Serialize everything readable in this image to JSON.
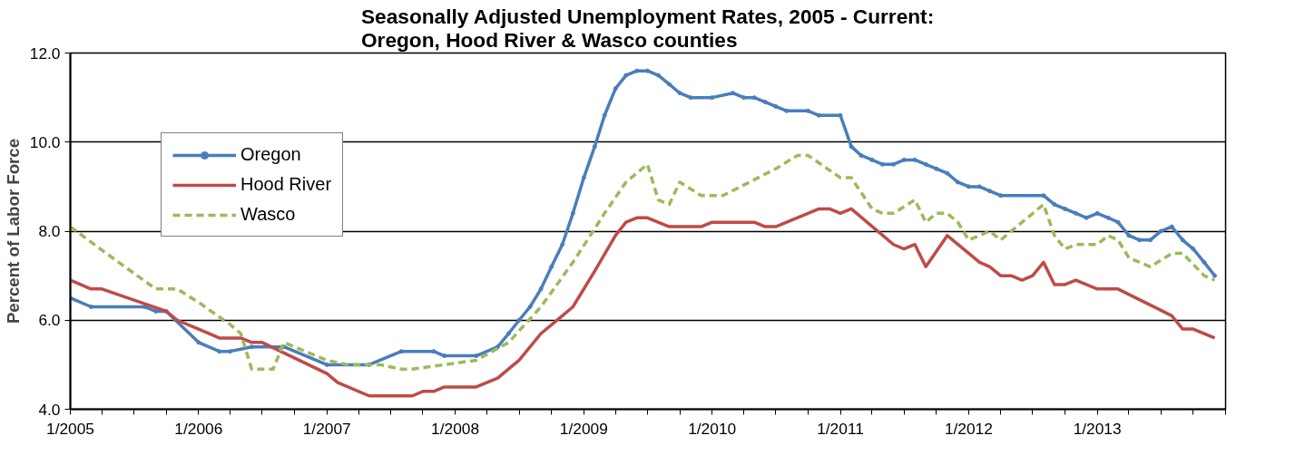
{
  "chart_data": {
    "type": "line",
    "title": "Seasonally Adjusted Unemployment Rates, 2005 - Current:\nOregon, Hood River & Wasco counties",
    "ylabel": "Percent of Labor Force",
    "ylim": [
      4.0,
      12.0
    ],
    "yticks": [
      {
        "value": 4,
        "label": "4.0"
      },
      {
        "value": 6,
        "label": "6.0"
      },
      {
        "value": 8,
        "label": "8.0"
      },
      {
        "value": 10,
        "label": "10.0"
      },
      {
        "value": 12,
        "label": "12.0"
      }
    ],
    "xlim": [
      "2005-01",
      "2014-01"
    ],
    "xticks": [
      {
        "value": "2005-01",
        "label": "1/2005"
      },
      {
        "value": "2005-04",
        "label": null
      },
      {
        "value": "2005-07",
        "label": null
      },
      {
        "value": "2005-10",
        "label": null
      },
      {
        "value": "2006-01",
        "label": "1/2006"
      },
      {
        "value": "2006-04",
        "label": null
      },
      {
        "value": "2006-07",
        "label": null
      },
      {
        "value": "2006-10",
        "label": null
      },
      {
        "value": "2007-01",
        "label": "1/2007"
      },
      {
        "value": "2007-04",
        "label": null
      },
      {
        "value": "2007-07",
        "label": null
      },
      {
        "value": "2007-10",
        "label": null
      },
      {
        "value": "2008-01",
        "label": "1/2008"
      },
      {
        "value": "2008-04",
        "label": null
      },
      {
        "value": "2008-07",
        "label": null
      },
      {
        "value": "2008-10",
        "label": null
      },
      {
        "value": "2009-01",
        "label": "1/2009"
      },
      {
        "value": "2009-04",
        "label": null
      },
      {
        "value": "2009-07",
        "label": null
      },
      {
        "value": "2009-10",
        "label": null
      },
      {
        "value": "2010-01",
        "label": "1/2010"
      },
      {
        "value": "2010-04",
        "label": null
      },
      {
        "value": "2010-07",
        "label": null
      },
      {
        "value": "2010-10",
        "label": null
      },
      {
        "value": "2011-01",
        "label": "1/2011"
      },
      {
        "value": "2011-04",
        "label": null
      },
      {
        "value": "2011-07",
        "label": null
      },
      {
        "value": "2011-10",
        "label": null
      },
      {
        "value": "2012-01",
        "label": "1/2012"
      },
      {
        "value": "2012-04",
        "label": null
      },
      {
        "value": "2012-07",
        "label": null
      },
      {
        "value": "2012-10",
        "label": null
      },
      {
        "value": "2013-01",
        "label": "1/2013"
      },
      {
        "value": "2013-04",
        "label": null
      },
      {
        "value": "2013-07",
        "label": null
      },
      {
        "value": "2013-10",
        "label": null
      },
      {
        "value": "2014-01",
        "label": null
      }
    ],
    "grid": "y",
    "legend": "top left",
    "series": [
      {
        "name": "Oregon",
        "color": "#4a7ebb",
        "marker": "circle",
        "line_style": "solid",
        "x": [
          "2005-01",
          "2005-03",
          "2005-08",
          "2005-09",
          "2005-10",
          "2006-01",
          "2006-03",
          "2006-04",
          "2006-06",
          "2006-09",
          "2007-01",
          "2007-05",
          "2007-08",
          "2007-11",
          "2007-12",
          "2008-03",
          "2008-05",
          "2008-06",
          "2008-07",
          "2008-08",
          "2008-09",
          "2008-10",
          "2008-11",
          "2008-12",
          "2009-01",
          "2009-02",
          "2009-03",
          "2009-04",
          "2009-05",
          "2009-06",
          "2009-07",
          "2009-08",
          "2009-09",
          "2009-10",
          "2009-11",
          "2010-01",
          "2010-03",
          "2010-04",
          "2010-05",
          "2010-06",
          "2010-07",
          "2010-08",
          "2010-10",
          "2010-11",
          "2011-01",
          "2011-02",
          "2011-03",
          "2011-04",
          "2011-05",
          "2011-06",
          "2011-07",
          "2011-08",
          "2011-09",
          "2011-10",
          "2011-11",
          "2011-12",
          "2012-01",
          "2012-02",
          "2012-03",
          "2012-04",
          "2012-08",
          "2012-09",
          "2012-10",
          "2012-11",
          "2012-12",
          "2013-01",
          "2013-02",
          "2013-03",
          "2013-04",
          "2013-05",
          "2013-06",
          "2013-07",
          "2013-08",
          "2013-09",
          "2013-10",
          "2013-11",
          "2013-12"
        ],
        "values": [
          6.5,
          6.3,
          6.3,
          6.2,
          6.2,
          5.5,
          5.3,
          5.3,
          5.4,
          5.4,
          5.0,
          5.0,
          5.3,
          5.3,
          5.2,
          5.2,
          5.4,
          5.7,
          6.0,
          6.3,
          6.7,
          7.2,
          7.7,
          8.4,
          9.2,
          9.9,
          10.6,
          11.2,
          11.5,
          11.6,
          11.6,
          11.5,
          11.3,
          11.1,
          11.0,
          11.0,
          11.1,
          11.0,
          11.0,
          10.9,
          10.8,
          10.7,
          10.7,
          10.6,
          10.6,
          9.9,
          9.7,
          9.6,
          9.5,
          9.5,
          9.6,
          9.6,
          9.5,
          9.4,
          9.3,
          9.1,
          9.0,
          9.0,
          8.9,
          8.8,
          8.8,
          8.6,
          8.5,
          8.4,
          8.3,
          8.4,
          8.3,
          8.2,
          7.9,
          7.8,
          7.8,
          8.0,
          8.1,
          7.8,
          7.6,
          7.3,
          7.0
        ]
      },
      {
        "name": "Hood River",
        "color": "#be4b48",
        "marker": "none",
        "line_style": "solid",
        "x": [
          "2005-01",
          "2005-03",
          "2005-04",
          "2005-10",
          "2005-11",
          "2006-01",
          "2006-03",
          "2006-05",
          "2006-06",
          "2006-07",
          "2007-01",
          "2007-02",
          "2007-05",
          "2007-09",
          "2007-10",
          "2007-11",
          "2007-12",
          "2008-03",
          "2008-05",
          "2008-07",
          "2008-09",
          "2008-11",
          "2008-12",
          "2009-02",
          "2009-04",
          "2009-05",
          "2009-06",
          "2009-07",
          "2009-09",
          "2009-12",
          "2010-01",
          "2010-05",
          "2010-06",
          "2010-07",
          "2010-10",
          "2010-11",
          "2010-12",
          "2011-01",
          "2011-02",
          "2011-06",
          "2011-07",
          "2011-08",
          "2011-09",
          "2011-11",
          "2012-02",
          "2012-03",
          "2012-04",
          "2012-05",
          "2012-06",
          "2012-07",
          "2012-08",
          "2012-09",
          "2012-10",
          "2012-11",
          "2013-01",
          "2013-03",
          "2013-08",
          "2013-09",
          "2013-10",
          "2013-12"
        ],
        "values": [
          6.9,
          6.7,
          6.7,
          6.2,
          6.0,
          5.8,
          5.6,
          5.6,
          5.5,
          5.5,
          4.8,
          4.6,
          4.3,
          4.3,
          4.4,
          4.4,
          4.5,
          4.5,
          4.7,
          5.1,
          5.7,
          6.1,
          6.3,
          7.1,
          7.9,
          8.2,
          8.3,
          8.3,
          8.1,
          8.1,
          8.2,
          8.2,
          8.1,
          8.1,
          8.4,
          8.5,
          8.5,
          8.4,
          8.5,
          7.7,
          7.6,
          7.7,
          7.2,
          7.9,
          7.3,
          7.2,
          7.0,
          7.0,
          6.9,
          7.0,
          7.3,
          6.8,
          6.8,
          6.9,
          6.7,
          6.7,
          6.1,
          5.8,
          5.8,
          5.6
        ]
      },
      {
        "name": "Wasco",
        "color": "#9bbb59",
        "marker": "none",
        "line_style": "dashed",
        "x": [
          "2005-01",
          "2005-05",
          "2005-09",
          "2005-11",
          "2006-01",
          "2006-04",
          "2006-05",
          "2006-06",
          "2006-08",
          "2006-09",
          "2006-11",
          "2007-01",
          "2007-03",
          "2007-06",
          "2007-08",
          "2007-09",
          "2007-12",
          "2008-03",
          "2008-06",
          "2008-09",
          "2008-12",
          "2009-03",
          "2009-05",
          "2009-07",
          "2009-08",
          "2009-09",
          "2009-10",
          "2009-12",
          "2010-02",
          "2010-07",
          "2010-09",
          "2010-10",
          "2011-01",
          "2011-02",
          "2011-04",
          "2011-05",
          "2011-06",
          "2011-08",
          "2011-09",
          "2011-10",
          "2011-11",
          "2011-12",
          "2012-01",
          "2012-03",
          "2012-04",
          "2012-06",
          "2012-08",
          "2012-09",
          "2012-10",
          "2012-11",
          "2013-01",
          "2013-02",
          "2013-03",
          "2013-04",
          "2013-06",
          "2013-08",
          "2013-09",
          "2013-11",
          "2013-12"
        ],
        "values": [
          8.1,
          7.4,
          6.7,
          6.7,
          6.4,
          5.9,
          5.7,
          4.9,
          4.9,
          5.5,
          5.3,
          5.1,
          5.0,
          5.0,
          4.9,
          4.9,
          5.0,
          5.1,
          5.5,
          6.3,
          7.3,
          8.4,
          9.1,
          9.5,
          8.7,
          8.6,
          9.1,
          8.8,
          8.8,
          9.4,
          9.7,
          9.7,
          9.2,
          9.2,
          8.5,
          8.4,
          8.4,
          8.7,
          8.2,
          8.4,
          8.4,
          8.2,
          7.8,
          8.0,
          7.8,
          8.2,
          8.6,
          7.9,
          7.6,
          7.7,
          7.7,
          7.9,
          7.8,
          7.4,
          7.2,
          7.5,
          7.5,
          7.0,
          6.9
        ]
      }
    ]
  }
}
